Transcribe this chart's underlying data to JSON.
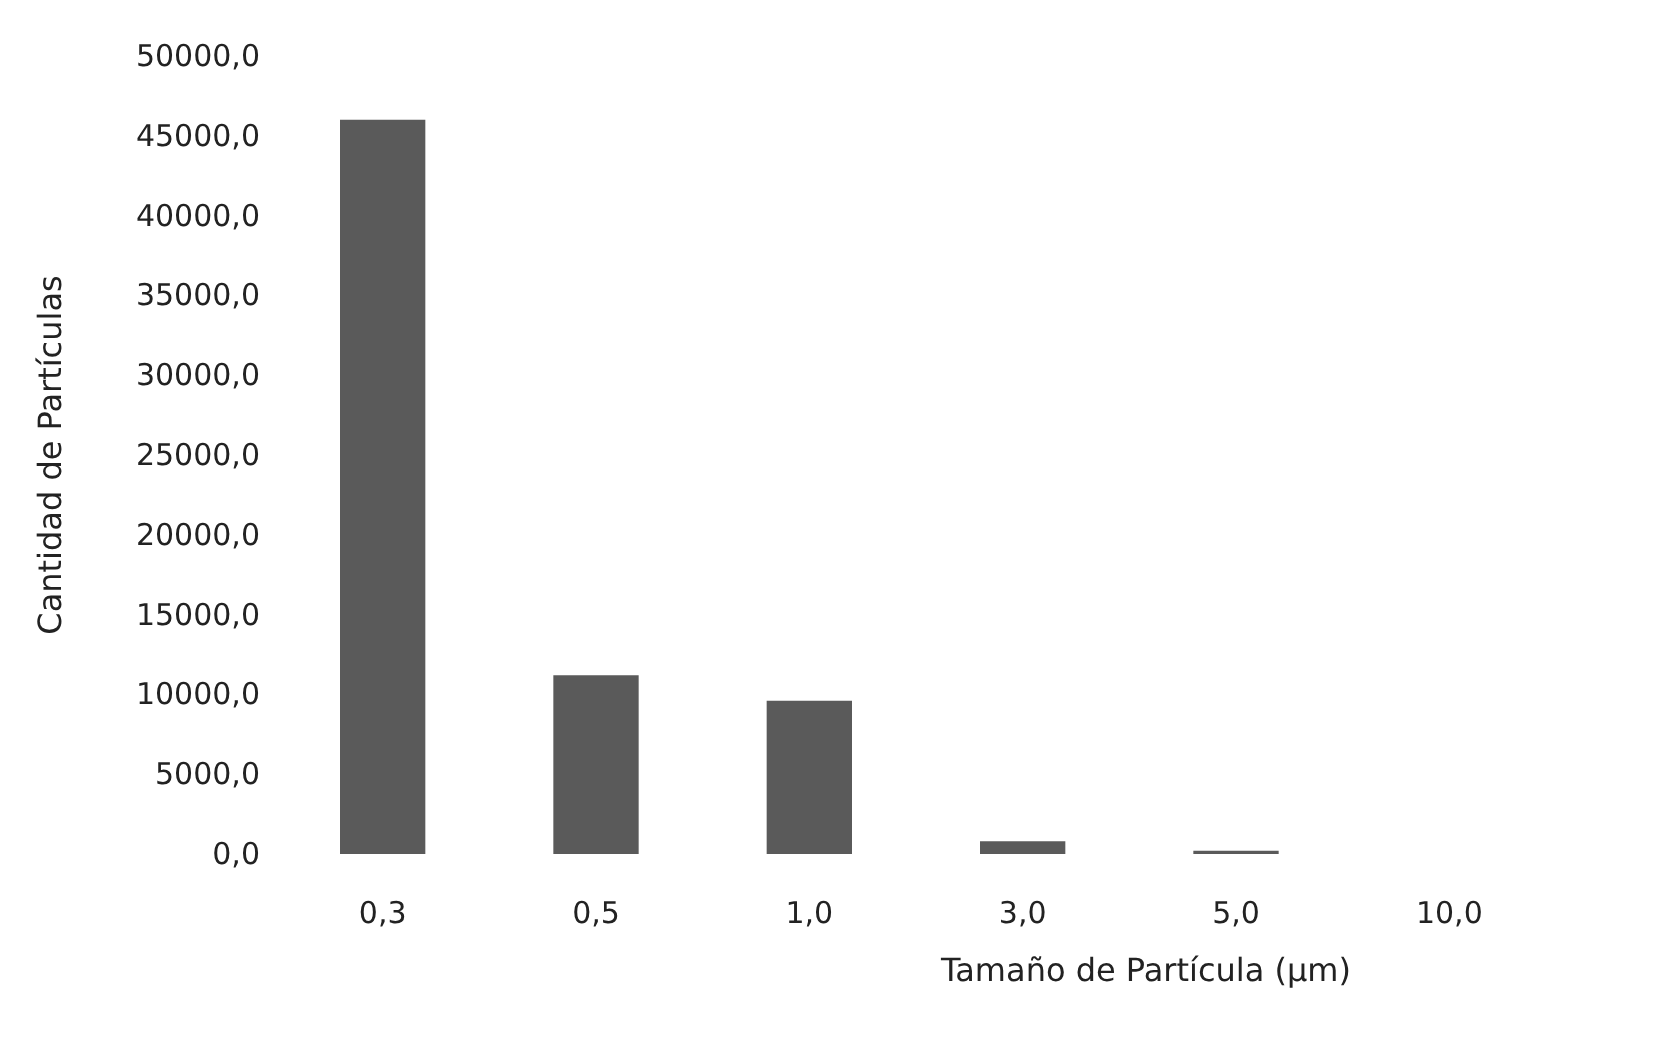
{
  "chart_data": {
    "type": "bar",
    "xlabel": "Tamaño de Partícula (µm)",
    "ylabel": "Cantidad de Partículas",
    "categories": [
      "0,3",
      "0,5",
      "1,0",
      "3,0",
      "5,0",
      "10,0"
    ],
    "values": [
      46000,
      11200,
      9600,
      800,
      200,
      0
    ],
    "color": "#5a5a5a",
    "ylim": [
      0,
      50000
    ],
    "yticks": [
      {
        "value": 0,
        "label": "0,0"
      },
      {
        "value": 5000,
        "label": "5000,0"
      },
      {
        "value": 10000,
        "label": "10000,0"
      },
      {
        "value": 15000,
        "label": "15000,0"
      },
      {
        "value": 20000,
        "label": "20000,0"
      },
      {
        "value": 25000,
        "label": "25000,0"
      },
      {
        "value": 30000,
        "label": "30000,0"
      },
      {
        "value": 35000,
        "label": "35000,0"
      },
      {
        "value": 40000,
        "label": "40000,0"
      },
      {
        "value": 45000,
        "label": "45000,0"
      },
      {
        "value": 50000,
        "label": "50000,0"
      }
    ],
    "grid": false
  }
}
